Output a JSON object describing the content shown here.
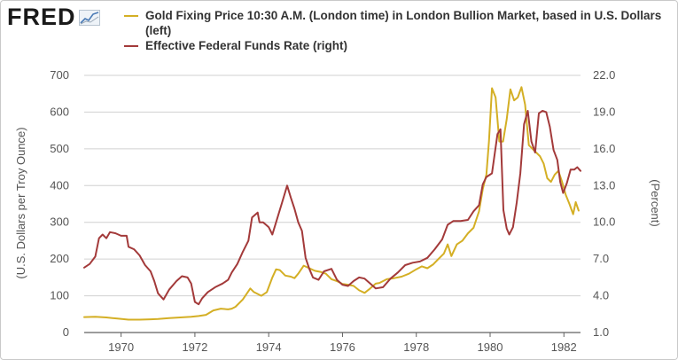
{
  "header": {
    "logo_text": "FRED"
  },
  "colors": {
    "gold": "#d4af25",
    "fedfunds": "#a33a3a",
    "grid": "#d0d0d0",
    "axis": "#606060"
  },
  "chart_data": {
    "type": "line",
    "x_tick_labels": [
      "1970",
      "1972",
      "1974",
      "1976",
      "1978",
      "1980",
      "1982"
    ],
    "xlim": [
      1969.0,
      1982.45
    ],
    "y_left": {
      "label": "(U.S. Dollars per Troy Ounce)",
      "ticks": [
        "0",
        "100",
        "200",
        "300",
        "400",
        "500",
        "600",
        "700"
      ],
      "lim": [
        0,
        700
      ]
    },
    "y_right": {
      "label": "(Percent)",
      "ticks": [
        "1.0",
        "4.0",
        "7.0",
        "10.0",
        "13.0",
        "16.0",
        "19.0",
        "22.0"
      ],
      "lim": [
        1,
        22
      ]
    },
    "grid": true,
    "series": [
      {
        "name": "Gold Fixing Price 10:30 A.M. (London time) in London Bullion Market, based in U.S. Dollars (left)",
        "axis": "left",
        "points": [
          [
            1969.0,
            42
          ],
          [
            1969.3,
            43
          ],
          [
            1969.6,
            41
          ],
          [
            1969.9,
            38
          ],
          [
            1970.2,
            35
          ],
          [
            1970.5,
            35
          ],
          [
            1970.8,
            36
          ],
          [
            1971.0,
            37
          ],
          [
            1971.3,
            39
          ],
          [
            1971.6,
            41
          ],
          [
            1971.9,
            43
          ],
          [
            1972.1,
            45
          ],
          [
            1972.3,
            48
          ],
          [
            1972.5,
            60
          ],
          [
            1972.7,
            65
          ],
          [
            1972.9,
            63
          ],
          [
            1973.0,
            65
          ],
          [
            1973.1,
            70
          ],
          [
            1973.3,
            90
          ],
          [
            1973.5,
            120
          ],
          [
            1973.6,
            110
          ],
          [
            1973.8,
            100
          ],
          [
            1973.95,
            110
          ],
          [
            1974.1,
            150
          ],
          [
            1974.2,
            172
          ],
          [
            1974.3,
            170
          ],
          [
            1974.45,
            155
          ],
          [
            1974.6,
            152
          ],
          [
            1974.7,
            148
          ],
          [
            1974.8,
            160
          ],
          [
            1974.95,
            182
          ],
          [
            1975.1,
            175
          ],
          [
            1975.25,
            168
          ],
          [
            1975.4,
            165
          ],
          [
            1975.55,
            160
          ],
          [
            1975.7,
            145
          ],
          [
            1975.85,
            140
          ],
          [
            1976.0,
            132
          ],
          [
            1976.15,
            130
          ],
          [
            1976.3,
            127
          ],
          [
            1976.45,
            115
          ],
          [
            1976.6,
            108
          ],
          [
            1976.75,
            120
          ],
          [
            1976.9,
            133
          ],
          [
            1977.0,
            135
          ],
          [
            1977.2,
            145
          ],
          [
            1977.4,
            148
          ],
          [
            1977.6,
            152
          ],
          [
            1977.8,
            160
          ],
          [
            1978.0,
            172
          ],
          [
            1978.15,
            180
          ],
          [
            1978.3,
            175
          ],
          [
            1978.45,
            185
          ],
          [
            1978.6,
            200
          ],
          [
            1978.75,
            215
          ],
          [
            1978.85,
            240
          ],
          [
            1978.95,
            208
          ],
          [
            1979.1,
            240
          ],
          [
            1979.25,
            250
          ],
          [
            1979.4,
            270
          ],
          [
            1979.55,
            285
          ],
          [
            1979.7,
            330
          ],
          [
            1979.8,
            390
          ],
          [
            1979.9,
            430
          ],
          [
            1979.97,
            520
          ],
          [
            1980.05,
            665
          ],
          [
            1980.15,
            640
          ],
          [
            1980.25,
            520
          ],
          [
            1980.35,
            520
          ],
          [
            1980.45,
            580
          ],
          [
            1980.55,
            662
          ],
          [
            1980.65,
            632
          ],
          [
            1980.75,
            640
          ],
          [
            1980.85,
            668
          ],
          [
            1980.95,
            620
          ],
          [
            1981.05,
            510
          ],
          [
            1981.15,
            500
          ],
          [
            1981.25,
            490
          ],
          [
            1981.35,
            480
          ],
          [
            1981.45,
            460
          ],
          [
            1981.55,
            420
          ],
          [
            1981.65,
            410
          ],
          [
            1981.75,
            430
          ],
          [
            1981.85,
            440
          ],
          [
            1981.95,
            410
          ],
          [
            1982.05,
            375
          ],
          [
            1982.15,
            350
          ],
          [
            1982.25,
            322
          ],
          [
            1982.32,
            355
          ],
          [
            1982.4,
            332
          ]
        ]
      },
      {
        "name": "Effective Federal Funds Rate (right)",
        "axis": "right",
        "points": [
          [
            1969.0,
            6.3
          ],
          [
            1969.15,
            6.6
          ],
          [
            1969.3,
            7.2
          ],
          [
            1969.4,
            8.7
          ],
          [
            1969.5,
            9.0
          ],
          [
            1969.6,
            8.7
          ],
          [
            1969.7,
            9.2
          ],
          [
            1969.85,
            9.1
          ],
          [
            1970.0,
            8.9
          ],
          [
            1970.15,
            8.9
          ],
          [
            1970.2,
            8.0
          ],
          [
            1970.35,
            7.8
          ],
          [
            1970.5,
            7.3
          ],
          [
            1970.65,
            6.5
          ],
          [
            1970.8,
            6.0
          ],
          [
            1970.9,
            5.2
          ],
          [
            1971.0,
            4.2
          ],
          [
            1971.15,
            3.7
          ],
          [
            1971.3,
            4.5
          ],
          [
            1971.5,
            5.2
          ],
          [
            1971.65,
            5.6
          ],
          [
            1971.8,
            5.5
          ],
          [
            1971.9,
            5.0
          ],
          [
            1972.0,
            3.5
          ],
          [
            1972.1,
            3.3
          ],
          [
            1972.2,
            3.8
          ],
          [
            1972.35,
            4.3
          ],
          [
            1972.55,
            4.7
          ],
          [
            1972.75,
            5.0
          ],
          [
            1972.9,
            5.3
          ],
          [
            1973.0,
            5.9
          ],
          [
            1973.15,
            6.6
          ],
          [
            1973.3,
            7.6
          ],
          [
            1973.45,
            8.5
          ],
          [
            1973.55,
            10.4
          ],
          [
            1973.7,
            10.8
          ],
          [
            1973.75,
            10.0
          ],
          [
            1973.85,
            10.0
          ],
          [
            1974.0,
            9.6
          ],
          [
            1974.1,
            9.0
          ],
          [
            1974.2,
            10.0
          ],
          [
            1974.35,
            11.5
          ],
          [
            1974.5,
            13.0
          ],
          [
            1974.6,
            12.0
          ],
          [
            1974.7,
            11.1
          ],
          [
            1974.8,
            10.0
          ],
          [
            1974.9,
            9.3
          ],
          [
            1975.0,
            7.1
          ],
          [
            1975.1,
            6.2
          ],
          [
            1975.2,
            5.5
          ],
          [
            1975.35,
            5.3
          ],
          [
            1975.5,
            6.0
          ],
          [
            1975.7,
            6.2
          ],
          [
            1975.85,
            5.3
          ],
          [
            1976.0,
            4.9
          ],
          [
            1976.15,
            4.8
          ],
          [
            1976.3,
            5.2
          ],
          [
            1976.45,
            5.5
          ],
          [
            1976.6,
            5.4
          ],
          [
            1976.75,
            5.0
          ],
          [
            1976.9,
            4.6
          ],
          [
            1977.1,
            4.7
          ],
          [
            1977.3,
            5.4
          ],
          [
            1977.5,
            5.9
          ],
          [
            1977.7,
            6.5
          ],
          [
            1977.9,
            6.7
          ],
          [
            1978.1,
            6.8
          ],
          [
            1978.3,
            7.1
          ],
          [
            1978.5,
            7.8
          ],
          [
            1978.7,
            8.6
          ],
          [
            1978.85,
            9.8
          ],
          [
            1979.0,
            10.1
          ],
          [
            1979.2,
            10.1
          ],
          [
            1979.4,
            10.2
          ],
          [
            1979.55,
            10.9
          ],
          [
            1979.7,
            11.4
          ],
          [
            1979.8,
            13.1
          ],
          [
            1979.9,
            13.7
          ],
          [
            1980.05,
            14.0
          ],
          [
            1980.2,
            17.2
          ],
          [
            1980.28,
            17.6
          ],
          [
            1980.36,
            11.0
          ],
          [
            1980.45,
            9.5
          ],
          [
            1980.52,
            9.0
          ],
          [
            1980.62,
            9.6
          ],
          [
            1980.72,
            11.6
          ],
          [
            1980.82,
            14.0
          ],
          [
            1980.92,
            18.0
          ],
          [
            1981.02,
            19.1
          ],
          [
            1981.12,
            16.6
          ],
          [
            1981.22,
            15.7
          ],
          [
            1981.32,
            18.9
          ],
          [
            1981.42,
            19.1
          ],
          [
            1981.52,
            19.0
          ],
          [
            1981.62,
            17.8
          ],
          [
            1981.72,
            15.9
          ],
          [
            1981.82,
            15.1
          ],
          [
            1981.9,
            13.3
          ],
          [
            1981.98,
            12.4
          ],
          [
            1982.08,
            13.2
          ],
          [
            1982.18,
            14.3
          ],
          [
            1982.28,
            14.3
          ],
          [
            1982.36,
            14.5
          ],
          [
            1982.45,
            14.2
          ]
        ]
      }
    ]
  }
}
